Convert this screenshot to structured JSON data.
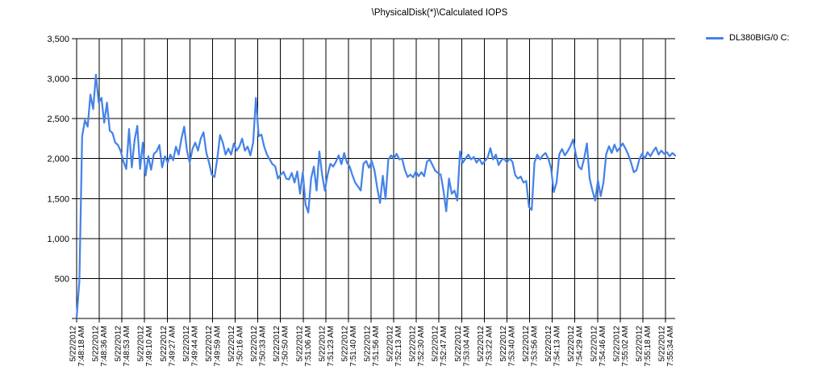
{
  "chart_data": {
    "type": "line",
    "title": "\\PhysicalDisk(*)\\Calculated IOPS",
    "grid": "on",
    "legend_position": "top-right",
    "x_axis": {
      "tick_date": "5/22/2012",
      "tick_times": [
        "7:48:18 AM",
        "7:48:36 AM",
        "7:48:53 AM",
        "7:49:10 AM",
        "7:49:27 AM",
        "7:49:44 AM",
        "7:49:59 AM",
        "7:50:16 AM",
        "7:50:33 AM",
        "7:50:50 AM",
        "7:51:06 AM",
        "7:51:23 AM",
        "7:51:40 AM",
        "7:51:56 AM",
        "7:52:13 AM",
        "7:52:30 AM",
        "7:52:47 AM",
        "7:53:04 AM",
        "7:53:22 AM",
        "7:53:40 AM",
        "7:53:56 AM",
        "7:54:13 AM",
        "7:54:29 AM",
        "7:54:46 AM",
        "7:55:02 AM",
        "7:55:18 AM",
        "7:55:34 AM"
      ]
    },
    "y_axis": {
      "min": 0,
      "max": 3500,
      "tick_values": [
        500,
        1000,
        1500,
        2000,
        2500,
        3000,
        3500
      ],
      "tick_labels": [
        "500",
        "1,000",
        "1,500",
        "2,000",
        "2,500",
        "3,000",
        "3,500"
      ]
    },
    "series": [
      {
        "name": "DL380BIG/0 C:",
        "color": "#4583E8",
        "values": [
          10,
          470,
          2280,
          2480,
          2400,
          2800,
          2620,
          3050,
          2700,
          2760,
          2450,
          2700,
          2350,
          2320,
          2200,
          2170,
          2090,
          1960,
          1870,
          2370,
          1890,
          2230,
          2410,
          1870,
          2200,
          1790,
          2030,
          1860,
          2060,
          2090,
          2170,
          1890,
          2030,
          1950,
          2050,
          1980,
          2150,
          2050,
          2250,
          2400,
          2100,
          1950,
          2120,
          2200,
          2100,
          2250,
          2330,
          2080,
          1950,
          1800,
          1770,
          2000,
          2295,
          2200,
          2050,
          2125,
          2050,
          2190,
          2100,
          2150,
          2250,
          2100,
          2150,
          2040,
          2200,
          2760,
          2280,
          2300,
          2150,
          2050,
          1990,
          1930,
          1905,
          1750,
          1800,
          1835,
          1750,
          1740,
          1820,
          1700,
          1840,
          1560,
          1830,
          1425,
          1325,
          1750,
          1900,
          1600,
          2090,
          1800,
          1600,
          1800,
          1935,
          1900,
          1960,
          2040,
          1930,
          2070,
          1950,
          1900,
          1790,
          1700,
          1650,
          1600,
          1935,
          1970,
          1885,
          1970,
          1850,
          1630,
          1445,
          1785,
          1495,
          1985,
          2040,
          2005,
          2060,
          1990,
          2000,
          1860,
          1770,
          1800,
          1765,
          1840,
          1780,
          1830,
          1780,
          1960,
          1990,
          1920,
          1850,
          1820,
          1800,
          1600,
          1340,
          1750,
          1560,
          1600,
          1475,
          2090,
          1950,
          2000,
          2050,
          1990,
          2020,
          1950,
          2000,
          1930,
          1970,
          2010,
          2130,
          1990,
          2050,
          1920,
          1980,
          2000,
          1950,
          2000,
          1960,
          1795,
          1750,
          1775,
          1700,
          1720,
          1395,
          1360,
          1950,
          2050,
          1990,
          2040,
          2070,
          2000,
          1885,
          1580,
          1700,
          2055,
          2120,
          2040,
          2090,
          2155,
          2240,
          2050,
          1900,
          1865,
          2000,
          2190,
          1750,
          1600,
          1475,
          1730,
          1530,
          1700,
          2055,
          2155,
          2070,
          2175,
          2090,
          2140,
          2190,
          2125,
          2050,
          1950,
          1830,
          1855,
          1990,
          2060,
          2000,
          2080,
          2030,
          2090,
          2140,
          2050,
          2100,
          2060,
          2080,
          2030,
          2070,
          2040
        ]
      }
    ]
  },
  "legend": {
    "items": [
      {
        "label": "DL380BIG/0 C:",
        "color": "#4583E8"
      }
    ]
  }
}
